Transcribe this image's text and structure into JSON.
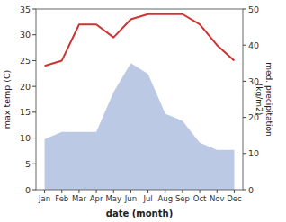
{
  "chart_data": {
    "type": "line",
    "categories": [
      "Jan",
      "Feb",
      "Mar",
      "Apr",
      "May",
      "Jun",
      "Jul",
      "Aug",
      "Sep",
      "Oct",
      "Nov",
      "Dec"
    ],
    "series": [
      {
        "type": "area",
        "axis": "y2",
        "color": "#aabbdd",
        "values": [
          14,
          16,
          16,
          16,
          27,
          35,
          32,
          21,
          19,
          13,
          11,
          11
        ]
      },
      {
        "type": "line",
        "color": "#cc3333",
        "values": [
          24,
          25,
          32,
          32,
          29.5,
          33,
          34,
          34,
          34,
          32,
          28,
          25
        ]
      }
    ],
    "xlabel": "date (month)",
    "ylabel": "max temp (C)",
    "y2label": "med. precipitation\n(kg/m2)",
    "ylim": [
      0,
      35
    ],
    "yticks": [
      0,
      5,
      10,
      15,
      20,
      25,
      30,
      35
    ],
    "y2lim": [
      0,
      50
    ],
    "y2ticks": [
      0,
      10,
      20,
      30,
      40,
      50
    ],
    "grid": false
  }
}
